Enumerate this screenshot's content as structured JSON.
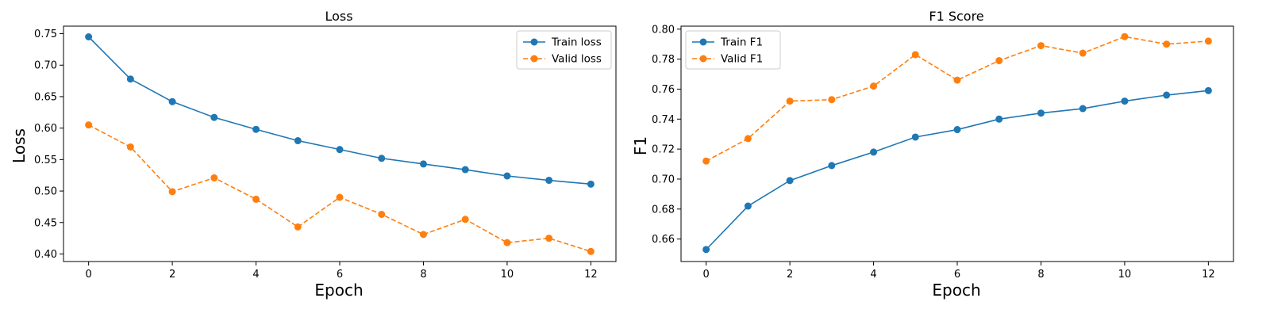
{
  "chart_data": [
    {
      "type": "line",
      "title": "Loss",
      "xlabel": "Epoch",
      "ylabel": "Loss",
      "x": [
        0,
        1,
        2,
        3,
        4,
        5,
        6,
        7,
        8,
        9,
        10,
        11,
        12
      ],
      "xlim": [
        -0.6,
        12.6
      ],
      "ylim": [
        0.388,
        0.762
      ],
      "xticks": [
        0,
        2,
        4,
        6,
        8,
        10,
        12
      ],
      "yticks": [
        0.4,
        0.45,
        0.5,
        0.55,
        0.6,
        0.65,
        0.7,
        0.75
      ],
      "ytick_labels": [
        "0.40",
        "0.45",
        "0.50",
        "0.55",
        "0.60",
        "0.65",
        "0.70",
        "0.75"
      ],
      "legend_position": "top-right",
      "grid": false,
      "series": [
        {
          "name": "Train loss",
          "color": "#1f77b4",
          "linestyle": "solid",
          "marker": "circle",
          "values": [
            0.745,
            0.678,
            0.642,
            0.617,
            0.598,
            0.58,
            0.566,
            0.552,
            0.543,
            0.534,
            0.524,
            0.517,
            0.511
          ]
        },
        {
          "name": "Valid loss",
          "color": "#ff7f0e",
          "linestyle": "dashed",
          "marker": "circle",
          "values": [
            0.605,
            0.57,
            0.499,
            0.521,
            0.487,
            0.443,
            0.49,
            0.463,
            0.431,
            0.455,
            0.418,
            0.425,
            0.404
          ]
        }
      ]
    },
    {
      "type": "line",
      "title": "F1 Score",
      "xlabel": "Epoch",
      "ylabel": "F1",
      "x": [
        0,
        1,
        2,
        3,
        4,
        5,
        6,
        7,
        8,
        9,
        10,
        11,
        12
      ],
      "xlim": [
        -0.6,
        12.6
      ],
      "ylim": [
        0.645,
        0.802
      ],
      "xticks": [
        0,
        2,
        4,
        6,
        8,
        10,
        12
      ],
      "yticks": [
        0.66,
        0.68,
        0.7,
        0.72,
        0.74,
        0.76,
        0.78,
        0.8
      ],
      "ytick_labels": [
        "0.66",
        "0.68",
        "0.70",
        "0.72",
        "0.74",
        "0.76",
        "0.78",
        "0.80"
      ],
      "legend_position": "top-left",
      "grid": false,
      "series": [
        {
          "name": "Train F1",
          "color": "#1f77b4",
          "linestyle": "solid",
          "marker": "circle",
          "values": [
            0.653,
            0.682,
            0.699,
            0.709,
            0.718,
            0.728,
            0.733,
            0.74,
            0.744,
            0.747,
            0.752,
            0.756,
            0.759
          ]
        },
        {
          "name": "Valid F1",
          "color": "#ff7f0e",
          "linestyle": "dashed",
          "marker": "circle",
          "values": [
            0.712,
            0.727,
            0.752,
            0.753,
            0.762,
            0.783,
            0.766,
            0.779,
            0.789,
            0.784,
            0.795,
            0.79,
            0.792
          ]
        }
      ]
    }
  ]
}
